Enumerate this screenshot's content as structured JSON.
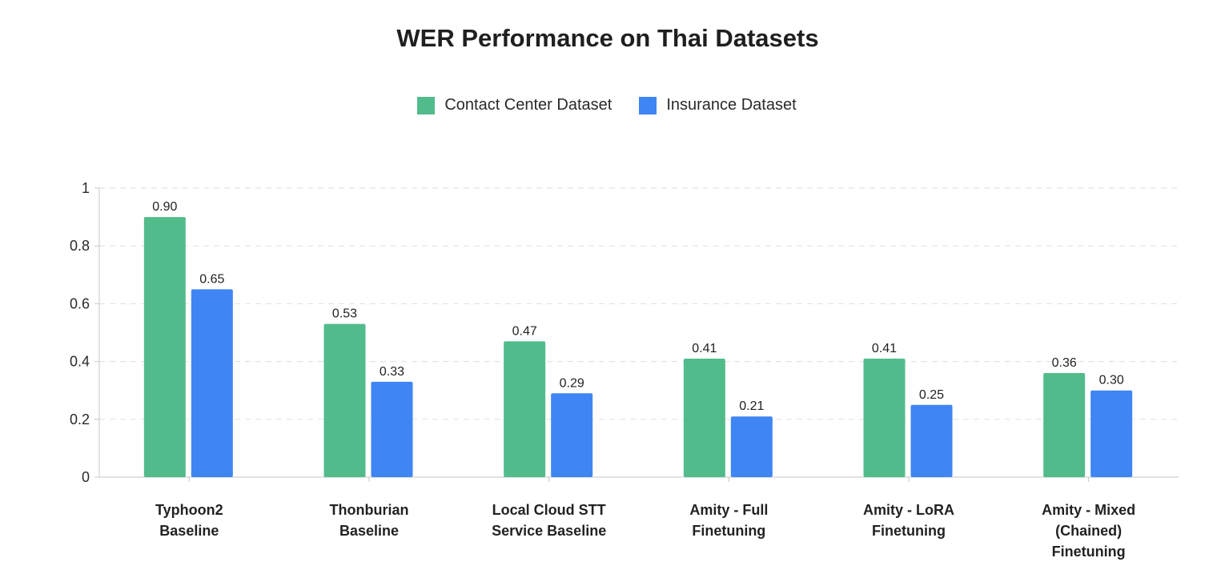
{
  "chart_data": {
    "type": "bar",
    "title": "WER Performance on Thai Datasets",
    "xlabel": "",
    "ylabel": "",
    "ylim": [
      0,
      1
    ],
    "yticks": [
      "0",
      "0.2",
      "0.4",
      "0.6",
      "0.8",
      "1"
    ],
    "grid": true,
    "legend_position": "top-center",
    "categories": [
      [
        "Typhoon2",
        "Baseline"
      ],
      [
        "Thonburian",
        "Baseline"
      ],
      [
        "Local Cloud STT",
        "Service Baseline"
      ],
      [
        "Amity - Full",
        "Finetuning"
      ],
      [
        "Amity - LoRA",
        "Finetuning"
      ],
      [
        "Amity - Mixed",
        "(Chained)",
        "Finetuning"
      ]
    ],
    "series": [
      {
        "name": "Contact Center Dataset",
        "color": "#52bb8c",
        "values": [
          0.9,
          0.53,
          0.47,
          0.41,
          0.41,
          0.36
        ],
        "labels": [
          "0.90",
          "0.53",
          "0.47",
          "0.41",
          "0.41",
          "0.36"
        ]
      },
      {
        "name": "Insurance Dataset",
        "color": "#3f85f4",
        "values": [
          0.65,
          0.33,
          0.29,
          0.21,
          0.25,
          0.3
        ],
        "labels": [
          "0.65",
          "0.33",
          "0.29",
          "0.21",
          "0.25",
          "0.30"
        ]
      }
    ]
  }
}
